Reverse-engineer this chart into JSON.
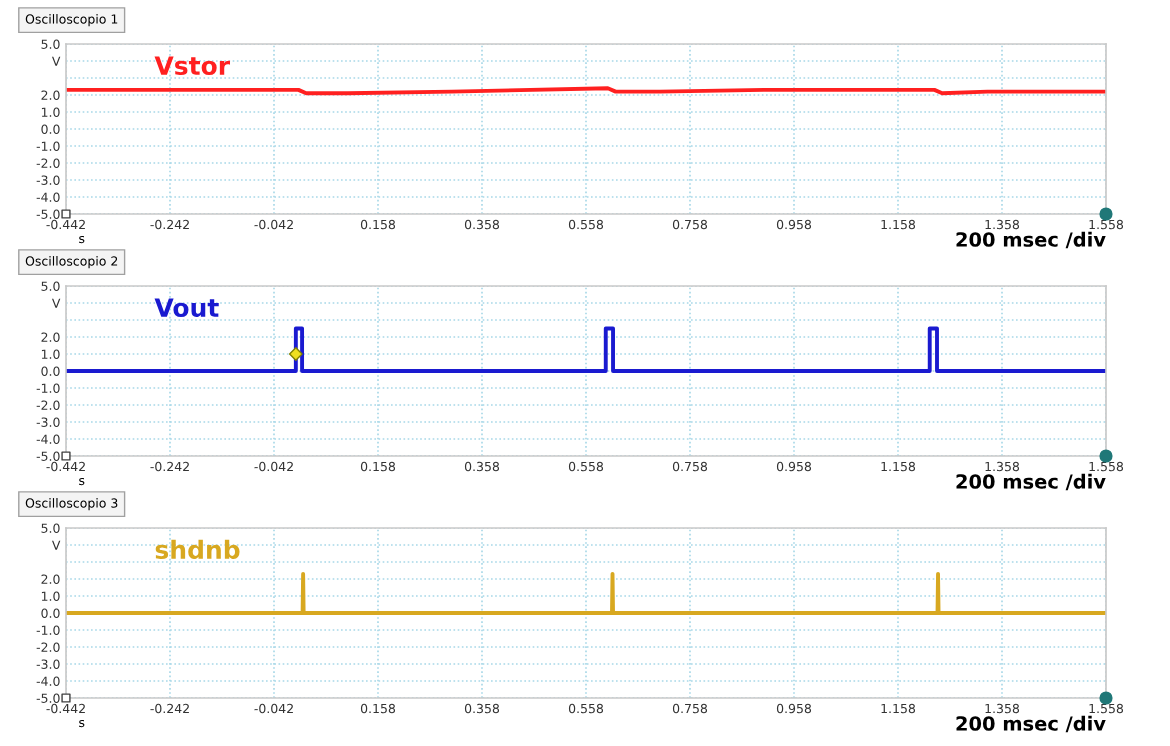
{
  "chart_data": [
    {
      "type": "line",
      "title": "Oscilloscopio 1",
      "xlabel": "s",
      "xlim": [
        -0.442,
        1.558
      ],
      "ylim": [
        -5.0,
        5.0
      ],
      "xticks": [
        -0.442,
        -0.242,
        -0.042,
        0.158,
        0.358,
        0.558,
        0.758,
        0.958,
        1.158,
        1.358,
        1.558
      ],
      "yticks": [
        {
          "value": 5,
          "label": "5.0"
        },
        {
          "value": 4,
          "label": "V"
        },
        {
          "value": 3,
          "label": null
        },
        {
          "value": 2,
          "label": "2.0"
        },
        {
          "value": 1,
          "label": "1.0"
        },
        {
          "value": 0,
          "label": "0.0"
        },
        {
          "value": -1,
          "label": "-1.0"
        },
        {
          "value": -2,
          "label": "-2.0"
        },
        {
          "value": -3,
          "label": "-3.0"
        },
        {
          "value": -4,
          "label": "-4.0"
        },
        {
          "value": -5,
          "label": "-5.0"
        }
      ],
      "grid": true,
      "annotations": [
        "200 msec /div"
      ],
      "series": [
        {
          "name": "Vstor",
          "color": "#ff2020",
          "x": [
            -0.442,
            0.005,
            0.02,
            0.1,
            0.3,
            0.6,
            0.615,
            0.7,
            0.9,
            1.228,
            1.243,
            1.33,
            1.558
          ],
          "values": [
            2.3,
            2.3,
            2.1,
            2.1,
            2.2,
            2.4,
            2.2,
            2.2,
            2.3,
            2.3,
            2.1,
            2.2,
            2.2
          ]
        }
      ]
    },
    {
      "type": "line",
      "title": "Oscilloscopio 2",
      "xlabel": "s",
      "xlim": [
        -0.442,
        1.558
      ],
      "ylim": [
        -5.0,
        5.0
      ],
      "xticks": [
        -0.442,
        -0.242,
        -0.042,
        0.158,
        0.358,
        0.558,
        0.758,
        0.958,
        1.158,
        1.358,
        1.558
      ],
      "yticks": [
        {
          "value": 5,
          "label": "5.0"
        },
        {
          "value": 4,
          "label": "V"
        },
        {
          "value": 3,
          "label": null
        },
        {
          "value": 2,
          "label": "2.0"
        },
        {
          "value": 1,
          "label": "1.0"
        },
        {
          "value": 0,
          "label": "0.0"
        },
        {
          "value": -1,
          "label": "-1.0"
        },
        {
          "value": -2,
          "label": "-2.0"
        },
        {
          "value": -3,
          "label": "-3.0"
        },
        {
          "value": -4,
          "label": "-4.0"
        },
        {
          "value": -5,
          "label": "-5.0"
        }
      ],
      "grid": true,
      "annotations": [
        "200 msec /div"
      ],
      "series": [
        {
          "name": "Vout",
          "color": "#1a1ad0",
          "x": [
            -0.442,
            0.0,
            0.0,
            0.012,
            0.012,
            0.596,
            0.596,
            0.61,
            0.61,
            1.219,
            1.219,
            1.233,
            1.233,
            1.558
          ],
          "values": [
            0,
            0,
            2.5,
            2.5,
            0,
            0,
            2.5,
            2.5,
            0,
            0,
            2.5,
            2.5,
            0,
            0
          ]
        },
        {
          "type": "scatter",
          "color": "#f0e020",
          "x": [
            0.0
          ],
          "values": [
            1.0
          ],
          "marker": "diamond"
        }
      ]
    },
    {
      "type": "line",
      "title": "Oscilloscopio 3",
      "xlabel": "s",
      "xlim": [
        -0.442,
        1.558
      ],
      "ylim": [
        -5.0,
        5.0
      ],
      "xticks": [
        -0.442,
        -0.242,
        -0.042,
        0.158,
        0.358,
        0.558,
        0.758,
        0.958,
        1.158,
        1.358,
        1.558
      ],
      "yticks": [
        {
          "value": 5,
          "label": "5.0"
        },
        {
          "value": 4,
          "label": "V"
        },
        {
          "value": 3,
          "label": null
        },
        {
          "value": 2,
          "label": "2.0"
        },
        {
          "value": 1,
          "label": "1.0"
        },
        {
          "value": 0,
          "label": "0.0"
        },
        {
          "value": -1,
          "label": "-1.0"
        },
        {
          "value": -2,
          "label": "-2.0"
        },
        {
          "value": -3,
          "label": "-3.0"
        },
        {
          "value": -4,
          "label": "-4.0"
        },
        {
          "value": -5,
          "label": "-5.0"
        }
      ],
      "grid": true,
      "annotations": [
        "200 msec /div"
      ],
      "series": [
        {
          "name": "shdnb",
          "color": "#d8a820",
          "x": [
            -0.442,
            0.013,
            0.014,
            0.015,
            0.608,
            0.609,
            0.61,
            1.234,
            1.235,
            1.236,
            1.558
          ],
          "values": [
            0,
            0,
            2.3,
            0,
            0,
            2.3,
            0,
            0,
            2.3,
            0,
            0
          ]
        }
      ]
    }
  ]
}
